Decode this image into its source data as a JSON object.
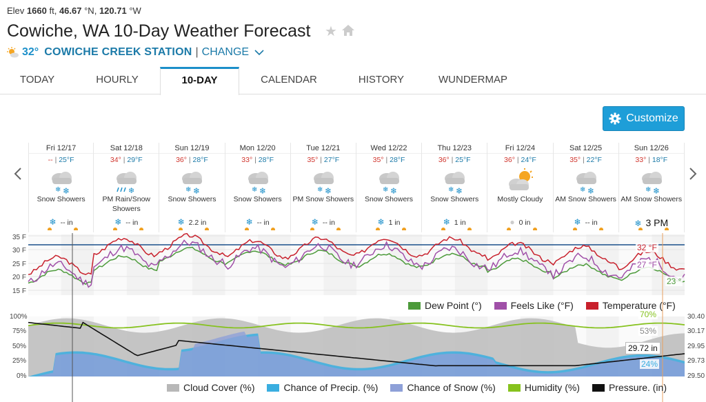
{
  "header": {
    "elev_label": "Elev",
    "elev_value": "1660",
    "elev_unit": "ft,",
    "lat": "46.67",
    "lat_unit": "°N,",
    "lon": "120.71",
    "lon_unit": "°W",
    "title": "Cowiche, WA 10-Day Weather Forecast",
    "current_temp": "32°",
    "station": "COWICHE CREEK STATION",
    "separator": "|",
    "change_label": "CHANGE"
  },
  "tabs": [
    {
      "label": "TODAY"
    },
    {
      "label": "HOURLY"
    },
    {
      "label": "10-DAY"
    },
    {
      "label": "CALENDAR"
    },
    {
      "label": "HISTORY"
    },
    {
      "label": "WUNDERMAP"
    }
  ],
  "customize_label": "Customize",
  "days": [
    {
      "name": "Fri 12/17",
      "hi": "--",
      "lo": "25°F",
      "cond": "Snow Showers",
      "precip": "-- in",
      "icon": "snow-showers-icon"
    },
    {
      "name": "Sat 12/18",
      "hi": "34°",
      "lo": "29°F",
      "cond": "PM Rain/Snow Showers",
      "precip": "-- in",
      "icon": "rain-snow-icon"
    },
    {
      "name": "Sun 12/19",
      "hi": "36°",
      "lo": "28°F",
      "cond": "Snow Showers",
      "precip": "2.2 in",
      "icon": "snow-showers-icon"
    },
    {
      "name": "Mon 12/20",
      "hi": "33°",
      "lo": "28°F",
      "cond": "Snow Showers",
      "precip": "-- in",
      "icon": "snow-showers-icon"
    },
    {
      "name": "Tue 12/21",
      "hi": "35°",
      "lo": "27°F",
      "cond": "PM Snow Showers",
      "precip": "-- in",
      "icon": "snow-showers-icon"
    },
    {
      "name": "Wed 12/22",
      "hi": "35°",
      "lo": "28°F",
      "cond": "Snow Showers",
      "precip": "1 in",
      "icon": "snow-showers-icon"
    },
    {
      "name": "Thu 12/23",
      "hi": "36°",
      "lo": "25°F",
      "cond": "Snow Showers",
      "precip": "1 in",
      "icon": "snow-showers-icon"
    },
    {
      "name": "Fri 12/24",
      "hi": "36°",
      "lo": "24°F",
      "cond": "Mostly Cloudy",
      "precip": "0 in",
      "icon": "mostly-cloudy-icon"
    },
    {
      "name": "Sat 12/25",
      "hi": "35°",
      "lo": "22°F",
      "cond": "AM Snow Showers",
      "precip": "-- in",
      "icon": "snow-showers-icon"
    },
    {
      "name": "Sun 12/26",
      "hi": "33°",
      "lo": "18°F",
      "cond": "AM Snow Showers",
      "precip": "3 PM",
      "icon": "snow-showers-icon"
    }
  ],
  "temp_chart": {
    "y_ticks": [
      "35 F",
      "30 F",
      "25 F",
      "20 F",
      "15 F"
    ],
    "readout_temp": "32 °F",
    "readout_feels": "27 °F",
    "readout_dew": "23 °",
    "legend": [
      "Dew Point (°)",
      "Feels Like (°F)",
      "Temperature (°F)"
    ],
    "colors": {
      "dew": "#4c9a3a",
      "feels": "#a050a8",
      "temp": "#c8202c",
      "freeze": "#1a4f8a"
    }
  },
  "precip_chart": {
    "y_ticks_left": [
      "100%",
      "75%",
      "50%",
      "25%",
      "0%"
    ],
    "y_ticks_right": [
      "30.40",
      "30.17",
      "29.95",
      "29.73",
      "29.50"
    ],
    "readout_humidity": "70%",
    "readout_cloud": "53%",
    "readout_pressure": "29.72 in",
    "readout_precip": "24%",
    "legend": [
      "Cloud Cover (%)",
      "Chance of Precip. (%)",
      "Chance of Snow (%)",
      "Humidity (%)",
      "Pressure. (in)"
    ],
    "colors": {
      "cloud": "#b8b8b8",
      "precip": "#3aaee0",
      "snow": "#8ea0d8",
      "humidity": "#86c21e",
      "pressure": "#111111"
    }
  }
}
